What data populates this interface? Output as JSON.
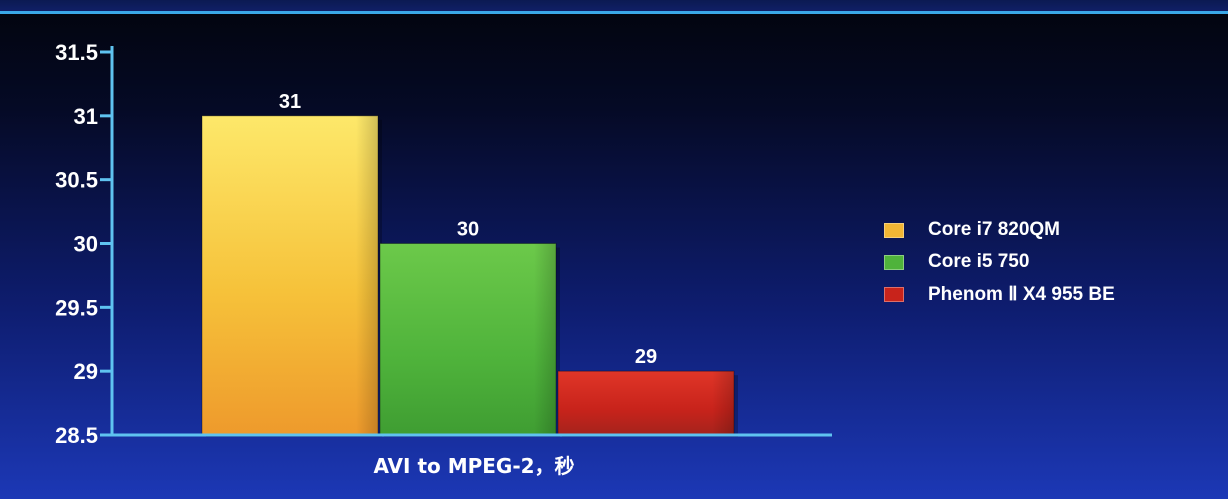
{
  "chart_data": {
    "type": "bar",
    "xlabel": "AVI to MPEG-2，秒",
    "ylim": [
      28.5,
      31.5
    ],
    "yticks": [
      "28.5",
      "29",
      "29.5",
      "30",
      "30.5",
      "31",
      "31.5"
    ],
    "grid": false,
    "legend_position": "right",
    "series": [
      {
        "name": "Core i7 820QM",
        "value": 31,
        "label": "31",
        "color": "#f2b634"
      },
      {
        "name": "Core i5 750",
        "value": 30,
        "label": "30",
        "color": "#4fb33b"
      },
      {
        "name": "Phenom Ⅱ X4 955 BE",
        "value": 29,
        "label": "29",
        "color": "#c8231b"
      }
    ]
  },
  "colors": {
    "axis": "#5fc3f0",
    "background_top": "#02040d",
    "background_bottom": "#1c38b6",
    "text": "#ffffff"
  }
}
